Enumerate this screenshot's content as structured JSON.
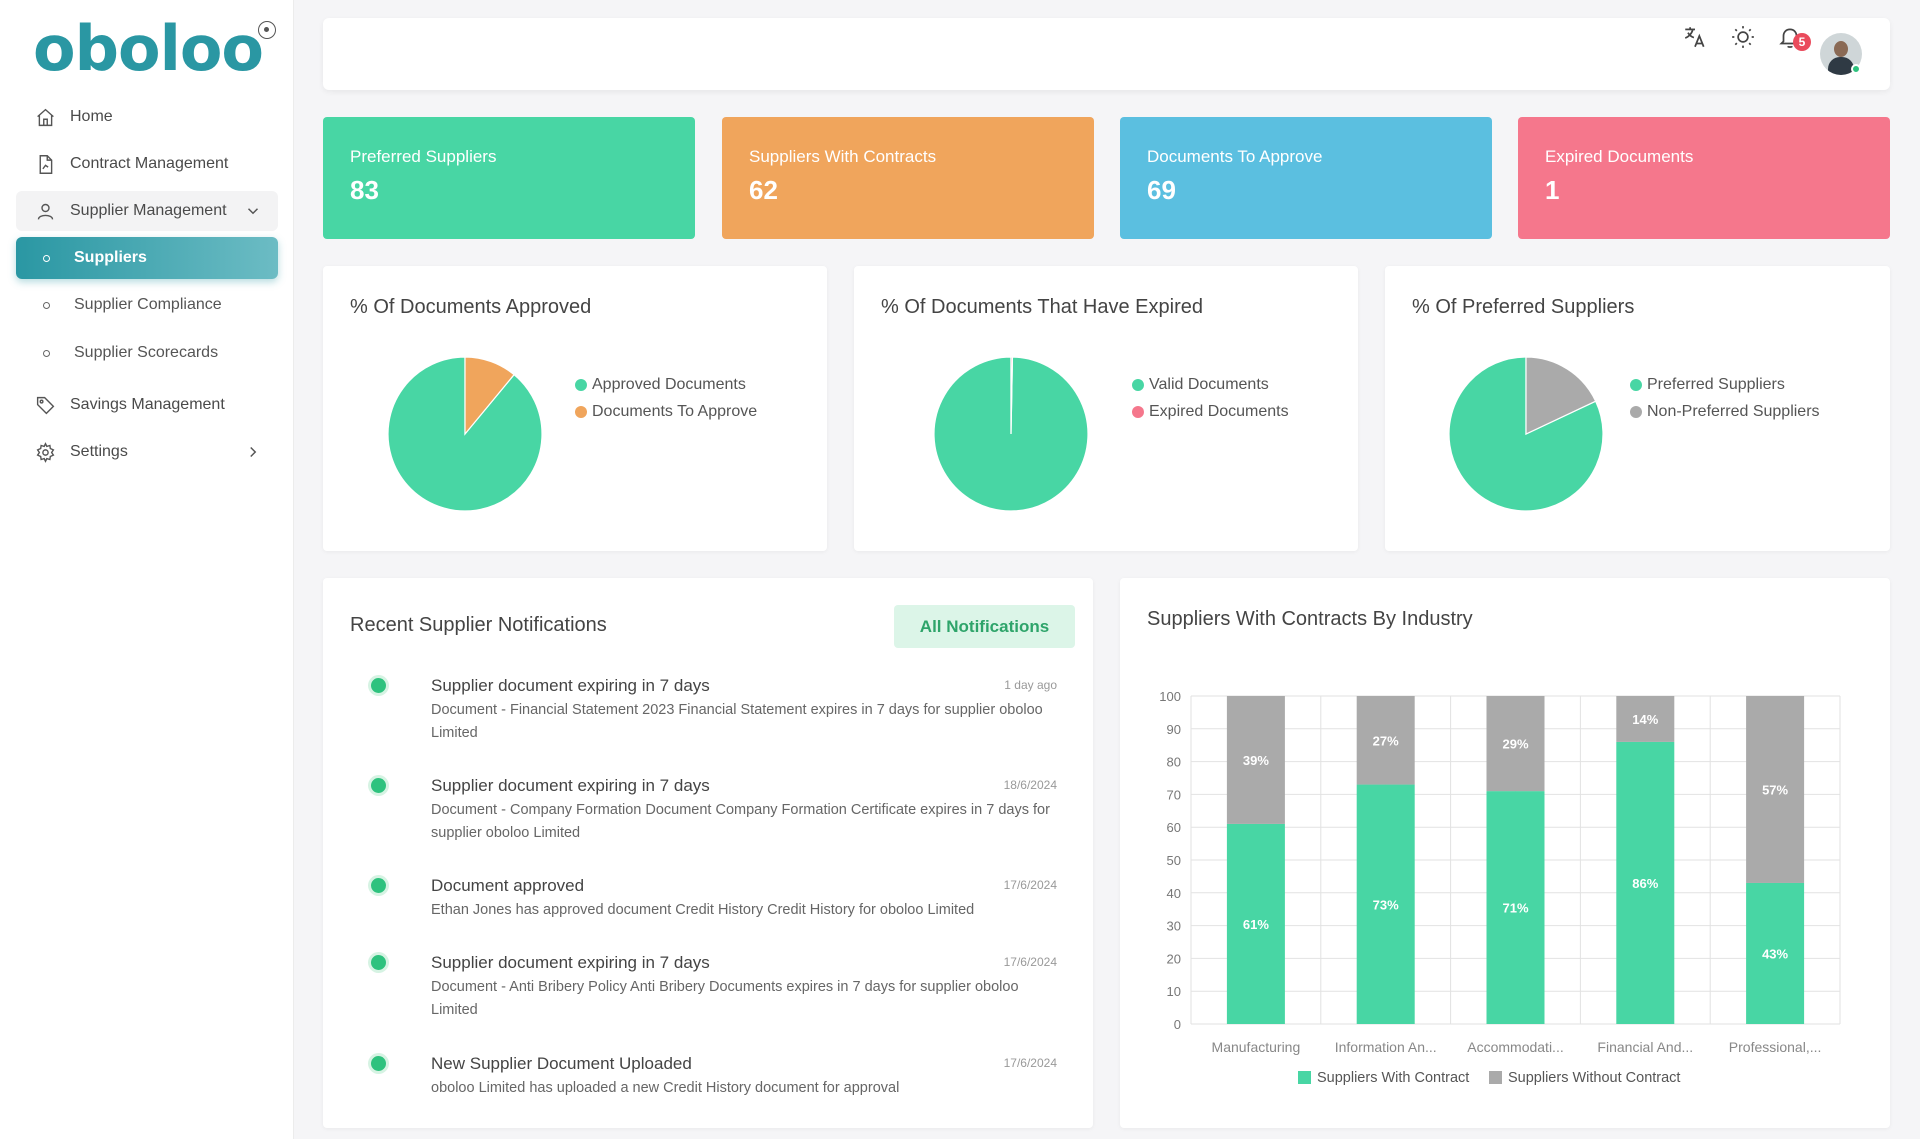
{
  "sidebar": {
    "logo": "oboloo",
    "items": [
      {
        "label": "Home"
      },
      {
        "label": "Contract Management"
      },
      {
        "label": "Supplier Management"
      },
      {
        "label": "Savings Management"
      },
      {
        "label": "Settings"
      }
    ],
    "sub_items": [
      {
        "label": "Suppliers"
      },
      {
        "label": "Supplier Compliance"
      },
      {
        "label": "Supplier Scorecards"
      }
    ]
  },
  "topbar": {
    "notification_count": "5"
  },
  "stats": [
    {
      "label": "Preferred Suppliers",
      "value": "83",
      "color": "#48d6a4"
    },
    {
      "label": "Suppliers With Contracts",
      "value": "62",
      "color": "#f0a55c"
    },
    {
      "label": "Documents To Approve",
      "value": "69",
      "color": "#5bbfe0"
    },
    {
      "label": "Expired Documents",
      "value": "1",
      "color": "#f5778c"
    }
  ],
  "pies": [
    {
      "title": "% Of Documents Approved",
      "slices": [
        {
          "label": "Approved Documents",
          "value": 89,
          "color": "#48d6a4"
        },
        {
          "label": "Documents To Approve",
          "value": 11,
          "color": "#f0a55c"
        }
      ]
    },
    {
      "title": "% Of Documents That Have Expired",
      "slices": [
        {
          "label": "Valid Documents",
          "value": 99.7,
          "color": "#48d6a4"
        },
        {
          "label": "Expired Documents",
          "value": 0.3,
          "color": "#f5778c"
        }
      ]
    },
    {
      "title": "% Of Preferred Suppliers",
      "slices": [
        {
          "label": "Preferred Suppliers",
          "value": 82,
          "color": "#48d6a4"
        },
        {
          "label": "Non-Preferred Suppliers",
          "value": 18,
          "color": "#aaaaaa"
        }
      ]
    }
  ],
  "notifications": {
    "title": "Recent Supplier Notifications",
    "button_label": "All Notifications",
    "items": [
      {
        "title": "Supplier document expiring in 7 days",
        "time": "1 day ago",
        "body": "Document - Financial Statement 2023 Financial Statement expires in 7 days for supplier oboloo Limited"
      },
      {
        "title": "Supplier document expiring in 7 days",
        "time": "18/6/2024",
        "body": "Document - Company Formation Document Company Formation Certificate expires in 7 days for supplier oboloo Limited"
      },
      {
        "title": "Document approved",
        "time": "17/6/2024",
        "body": "Ethan Jones has approved document Credit History Credit History for oboloo Limited"
      },
      {
        "title": "Supplier document expiring in 7 days",
        "time": "17/6/2024",
        "body": "Document - Anti Bribery Policy Anti Bribery Documents expires in 7 days for supplier oboloo Limited"
      },
      {
        "title": "New Supplier Document Uploaded",
        "time": "17/6/2024",
        "body": "oboloo Limited has uploaded a new Credit History document for approval"
      }
    ]
  },
  "chart_data": {
    "type": "bar",
    "stacked": true,
    "title": "Suppliers With Contracts By Industry",
    "categories": [
      "Manufacturing",
      "Information An...",
      "Accommodati...",
      "Financial And...",
      "Professional,..."
    ],
    "series": [
      {
        "name": "Suppliers With Contract",
        "values": [
          61,
          73,
          71,
          86,
          43
        ],
        "labels": [
          "61%",
          "73%",
          "71%",
          "86%",
          "43%"
        ],
        "color": "#48d6a4"
      },
      {
        "name": "Suppliers Without Contract",
        "values": [
          39,
          27,
          29,
          14,
          57
        ],
        "labels": [
          "39%",
          "27%",
          "29%",
          "14%",
          "57%"
        ],
        "color": "#aaaaaa"
      }
    ],
    "ylim": [
      0,
      100
    ],
    "yticks": [
      0,
      10,
      20,
      30,
      40,
      50,
      60,
      70,
      80,
      90,
      100
    ],
    "grid": true,
    "legend_position": "bottom"
  }
}
